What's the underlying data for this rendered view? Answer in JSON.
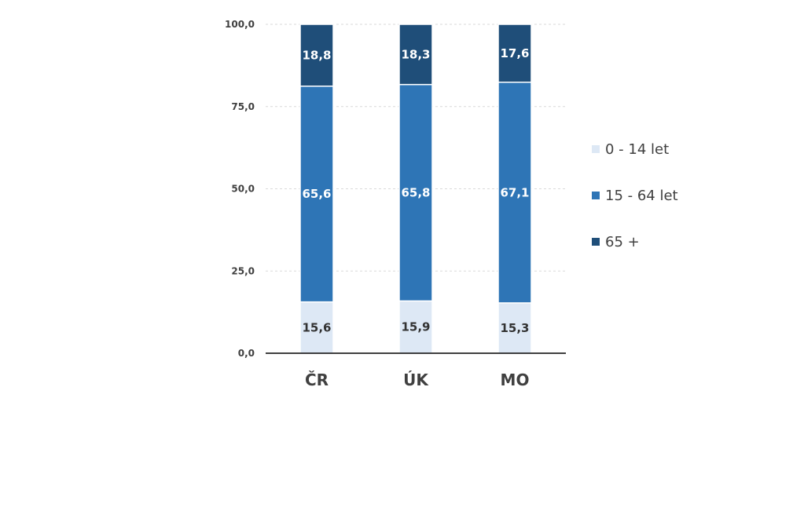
{
  "chart_data": {
    "type": "bar",
    "stacked": true,
    "categories": [
      "ČR",
      "ÚK",
      "MO"
    ],
    "series": [
      {
        "name": "0 - 14 let",
        "values": [
          15.6,
          15.9,
          15.3
        ],
        "color": "#dde8f5",
        "label_color": "#333333"
      },
      {
        "name": "15 - 64 let",
        "values": [
          65.6,
          65.8,
          67.1
        ],
        "color": "#2e75b6",
        "label_color": "#ffffff"
      },
      {
        "name": "65 +",
        "values": [
          18.8,
          18.3,
          17.6
        ],
        "color": "#1f4e79",
        "label_color": "#ffffff"
      }
    ],
    "y_ticks": [
      "0,0",
      "25,0",
      "50,0",
      "75,0",
      "100,0"
    ],
    "y_tick_values": [
      0,
      25,
      50,
      75,
      100
    ],
    "ylim": [
      0,
      100
    ],
    "grid": true,
    "legend_position": "right"
  }
}
